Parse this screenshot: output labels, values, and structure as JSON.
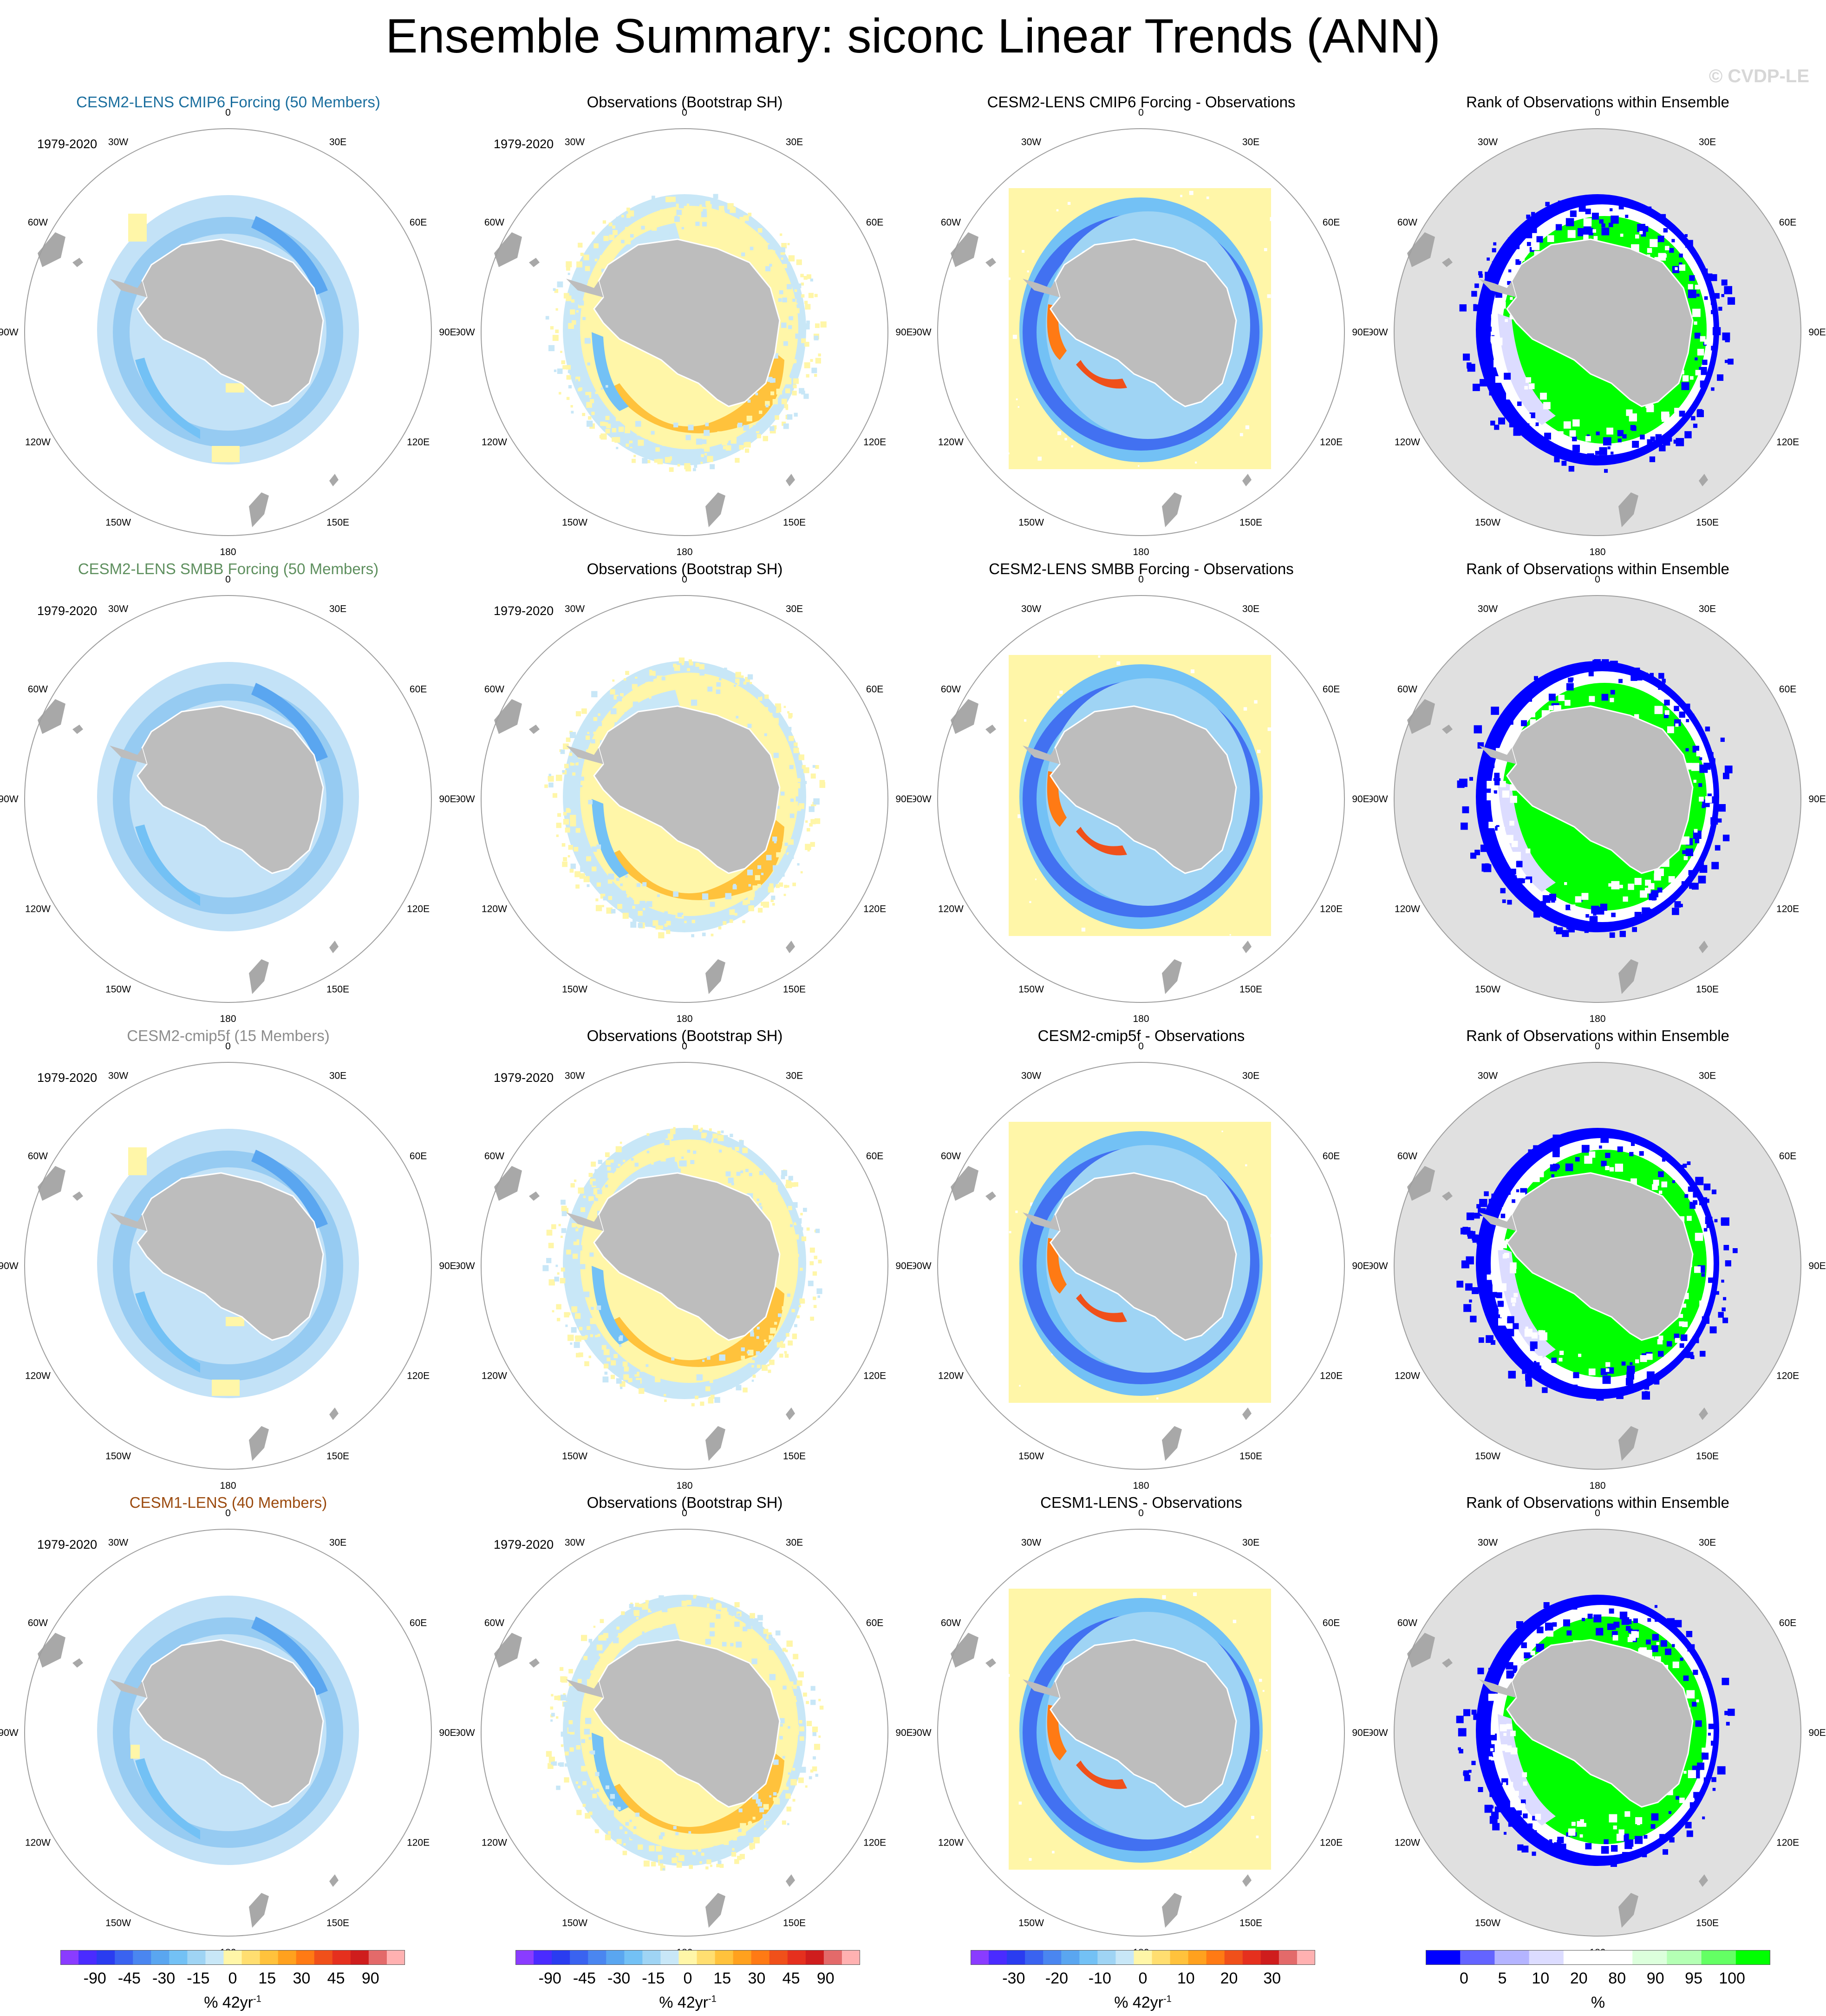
{
  "title": "Ensemble Summary: siconc Linear Trends (ANN)",
  "watermark": "© CVDP-LE",
  "rows": [
    {
      "model": "CESM2-LENS CMIP6 Forcing (50 Members)",
      "model_color": "#1a6e9e",
      "obs": "Observations (Bootstrap SH)",
      "diff": "CESM2-LENS CMIP6 Forcing - Observations",
      "rank": "Rank of Observations within Ensemble",
      "period": "1979-2020"
    },
    {
      "model": "CESM2-LENS SMBB Forcing (50 Members)",
      "model_color": "#5e8f5e",
      "obs": "Observations (Bootstrap SH)",
      "diff": "CESM2-LENS SMBB Forcing - Observations",
      "rank": "Rank of Observations within Ensemble",
      "period": "1979-2020"
    },
    {
      "model": "CESM2-cmip5f (15 Members)",
      "model_color": "#8c8c8c",
      "obs": "Observations (Bootstrap SH)",
      "diff": "CESM2-cmip5f - Observations",
      "rank": "Rank of Observations within Ensemble",
      "period": "1979-2020"
    },
    {
      "model": "CESM1-LENS (40 Members)",
      "model_color": "#9b4a0e",
      "obs": "Observations (Bootstrap SH)",
      "diff": "CESM1-LENS - Observations",
      "rank": "Rank of Observations within Ensemble",
      "period": "1979-2020"
    }
  ],
  "longitude_labels": [
    "0",
    "30E",
    "60E",
    "90E",
    "120E",
    "150E",
    "180",
    "150W",
    "120W",
    "90W",
    "60W",
    "30W"
  ],
  "colorbars": [
    {
      "unit": "% 42yr",
      "unit_sup": "-1",
      "labels": [
        "-90",
        "-45",
        "-30",
        "-15",
        "0",
        "15",
        "30",
        "45",
        "90"
      ],
      "colors": [
        "#8a3cff",
        "#4a2bff",
        "#2a3cf0",
        "#3a63f0",
        "#4a86f0",
        "#5aa6f0",
        "#73c1f5",
        "#9fd4f4",
        "#c8e7f7",
        "#fff6a8",
        "#ffde70",
        "#ffc23c",
        "#ffa11e",
        "#ff7a14",
        "#f0501a",
        "#e5301e",
        "#cf1d1d",
        "#e36a6a",
        "#ffb1b1"
      ]
    },
    {
      "unit": "% 42yr",
      "unit_sup": "-1",
      "labels": [
        "-90",
        "-45",
        "-30",
        "-15",
        "0",
        "15",
        "30",
        "45",
        "90"
      ],
      "colors": [
        "#8a3cff",
        "#4a2bff",
        "#2a3cf0",
        "#3a63f0",
        "#4a86f0",
        "#5aa6f0",
        "#73c1f5",
        "#9fd4f4",
        "#c8e7f7",
        "#fff6a8",
        "#ffde70",
        "#ffc23c",
        "#ffa11e",
        "#ff7a14",
        "#f0501a",
        "#e5301e",
        "#cf1d1d",
        "#e36a6a",
        "#ffb1b1"
      ]
    },
    {
      "unit": "% 42yr",
      "unit_sup": "-1",
      "labels": [
        "-30",
        "-20",
        "-10",
        "0",
        "10",
        "20",
        "30"
      ],
      "colors": [
        "#8a3cff",
        "#4a2bff",
        "#2a3cf0",
        "#3a63f0",
        "#4a86f0",
        "#5aa6f0",
        "#73c1f5",
        "#9fd4f4",
        "#c8e7f7",
        "#fff6a8",
        "#ffde70",
        "#ffc23c",
        "#ffa11e",
        "#ff7a14",
        "#f0501a",
        "#e5301e",
        "#cf1d1d",
        "#e36a6a",
        "#ffb1b1"
      ]
    },
    {
      "unit": "%",
      "unit_sup": "",
      "labels": [
        "0",
        "5",
        "10",
        "20",
        "80",
        "90",
        "95",
        "100"
      ],
      "colors": [
        "#0000ff",
        "#6464ff",
        "#b4b4ff",
        "#dcdcff",
        "#ffffff",
        "#ffffff",
        "#dcffdc",
        "#b4ffb4",
        "#64ff64",
        "#00ff00"
      ]
    }
  ],
  "chart_data": {
    "type": "heatmap",
    "title": "Ensemble Summary: siconc Linear Trends (ANN)",
    "projection": "south polar stereographic",
    "period": "1979-2020",
    "columns": [
      "ensemble mean trend",
      "observations",
      "ensemble minus observations",
      "rank of observations within ensemble"
    ],
    "trend_units": "% 42yr-1",
    "trend_contour_levels": [
      -90,
      -45,
      -30,
      -15,
      0,
      15,
      30,
      45,
      90
    ],
    "difference_contour_levels": [
      -30,
      -20,
      -10,
      0,
      10,
      20,
      30
    ],
    "rank_levels_percent": [
      0,
      5,
      10,
      20,
      80,
      90,
      95,
      100
    ],
    "panels": [
      {
        "row": 1,
        "model": "CESM2-LENS CMIP6 Forcing (50 Members)",
        "members": 50
      },
      {
        "row": 2,
        "model": "CESM2-LENS SMBB Forcing (50 Members)",
        "members": 50
      },
      {
        "row": 3,
        "model": "CESM2-cmip5f (15 Members)",
        "members": 15
      },
      {
        "row": 4,
        "model": "CESM1-LENS (40 Members)",
        "members": 40
      }
    ],
    "observations": "Bootstrap SH"
  }
}
